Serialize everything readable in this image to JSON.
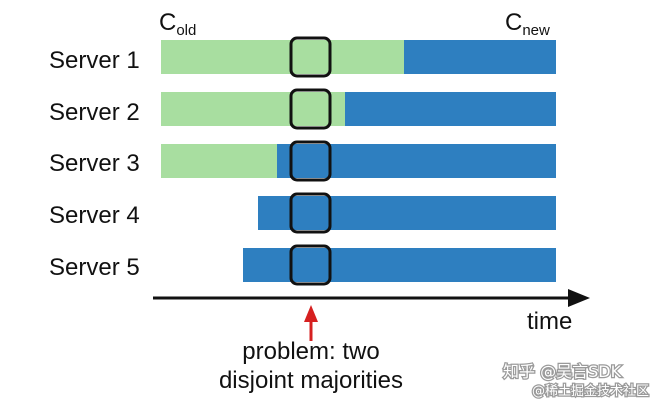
{
  "header": {
    "c_old": {
      "base": "C",
      "sub": "old"
    },
    "c_new": {
      "base": "C",
      "sub": "new"
    }
  },
  "servers": [
    {
      "label": "Server 1"
    },
    {
      "label": "Server 2"
    },
    {
      "label": "Server 3"
    },
    {
      "label": "Server 4"
    },
    {
      "label": "Server 5"
    }
  ],
  "axis": {
    "label": "time"
  },
  "annotation": {
    "line1": "problem: two",
    "line2": "disjoint majorities"
  },
  "watermark": {
    "line1": "知乎 @吴言SDK",
    "line2": "@稀土掘金技术社区"
  },
  "colors": {
    "old_config": "#a8dea0",
    "new_config": "#2e7fc0",
    "highlight_border": "#111111",
    "arrow": "#d62020",
    "axis": "#111111"
  }
}
